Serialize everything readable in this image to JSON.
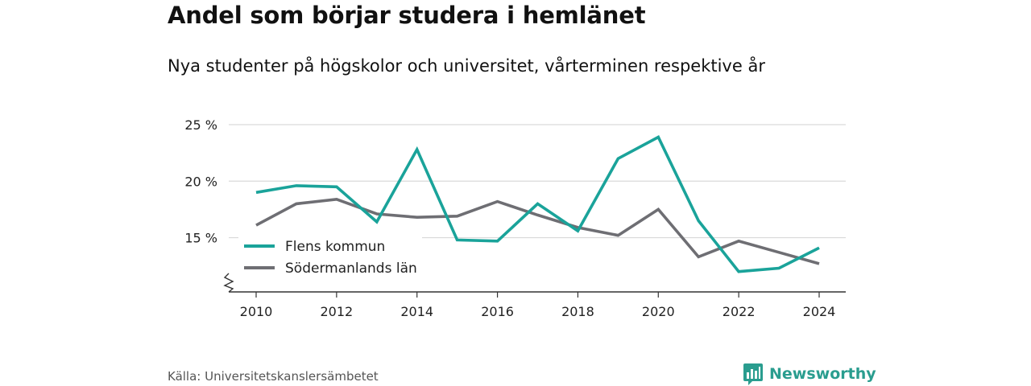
{
  "header": {
    "title": "Andel som börjar studera i hemlänet",
    "subtitle": "Nya studenter på högskolor och universitet, vårterminen respektive år"
  },
  "footer": {
    "source": "Källa: Universitetskanslersämbetet",
    "brand": "Newsworthy",
    "brand_icon": "bar-chart-icon"
  },
  "colors": {
    "flens": "#1aa39a",
    "sodermanland": "#6e6e73",
    "grid": "#d9d9d9",
    "axis": "#333333",
    "brand": "#2a9d8f"
  },
  "chart_data": {
    "type": "line",
    "x": [
      2010,
      2011,
      2012,
      2013,
      2014,
      2015,
      2016,
      2017,
      2018,
      2019,
      2020,
      2021,
      2022,
      2023,
      2024
    ],
    "x_ticks": [
      2010,
      2012,
      2014,
      2016,
      2018,
      2020,
      2022,
      2024
    ],
    "x_tick_labels": [
      "2010",
      "2012",
      "2014",
      "2016",
      "2018",
      "2020",
      "2022",
      "2024"
    ],
    "y_ticks": [
      15,
      20,
      25
    ],
    "y_tick_labels": [
      "15 %",
      "20 %",
      "25 %"
    ],
    "ylim": [
      10.2,
      25
    ],
    "y_axis_break": true,
    "grid": true,
    "legend_position": "bottom-left",
    "series": [
      {
        "name": "Flens kommun",
        "color": "#1aa39a",
        "values": [
          19.0,
          19.6,
          19.5,
          16.4,
          22.8,
          14.8,
          14.7,
          18.0,
          15.6,
          22.0,
          23.9,
          16.5,
          12.0,
          12.3,
          14.1
        ]
      },
      {
        "name": "Södermanlands län",
        "color": "#6e6e73",
        "values": [
          16.1,
          18.0,
          18.4,
          17.1,
          16.8,
          16.9,
          18.2,
          17.0,
          15.9,
          15.2,
          17.5,
          13.3,
          14.7,
          13.7,
          12.7
        ]
      }
    ]
  }
}
